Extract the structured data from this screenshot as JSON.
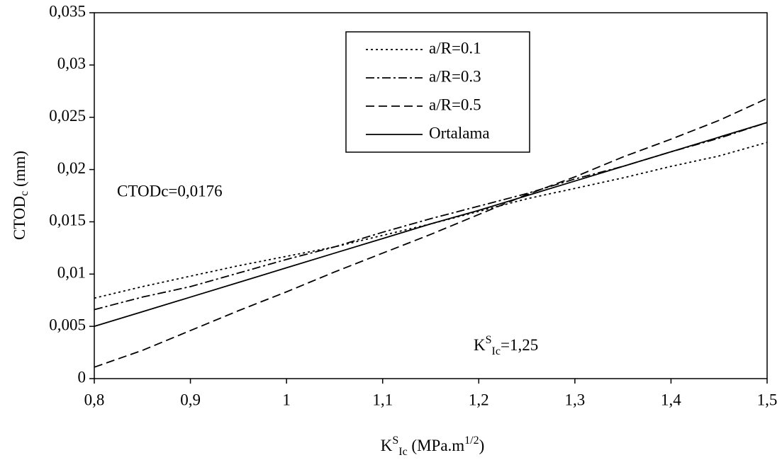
{
  "chart_data": {
    "type": "line",
    "x_label": {
      "base": "K",
      "sup": "S",
      "sub": "Ic",
      "unit": " (MPa.m",
      "unit_sup": "1/2",
      "end": ")"
    },
    "y_label": {
      "base": "CTOD",
      "sub": "c",
      "unit": " (mm)"
    },
    "annotations": {
      "ctod": "CTODc=0,0176",
      "k": {
        "base": "K",
        "sup": "S",
        "sub": "Ic",
        "rest": "=1,25"
      }
    },
    "x": [
      0.8,
      0.85,
      0.9,
      0.95,
      1.0,
      1.05,
      1.1,
      1.15,
      1.2,
      1.25,
      1.3,
      1.35,
      1.4,
      1.45,
      1.5
    ],
    "series": [
      {
        "name": "a/R=0.1",
        "color": "#000000",
        "dash": "dotted",
        "values": [
          0.0077,
          0.0088,
          0.0098,
          0.0108,
          0.0117,
          0.0126,
          0.0137,
          0.0148,
          0.016,
          0.0172,
          0.0182,
          0.0192,
          0.0203,
          0.0213,
          0.0226
        ]
      },
      {
        "name": "a/R=0.3",
        "color": "#000000",
        "dash": "dashdot",
        "values": [
          0.0066,
          0.0078,
          0.0088,
          0.0101,
          0.0114,
          0.0126,
          0.014,
          0.0153,
          0.0165,
          0.0177,
          0.0191,
          0.0203,
          0.0217,
          0.023,
          0.0245
        ]
      },
      {
        "name": "a/R=0.5",
        "color": "#000000",
        "dash": "dashed",
        "values": [
          0.0011,
          0.0027,
          0.0046,
          0.0065,
          0.0083,
          0.0102,
          0.012,
          0.0138,
          0.0157,
          0.0176,
          0.0193,
          0.0212,
          0.0229,
          0.0247,
          0.0268
        ]
      },
      {
        "name": "Ortalama",
        "color": "#000000",
        "dash": "solid",
        "values": [
          0.005,
          0.0064,
          0.0078,
          0.0092,
          0.0106,
          0.012,
          0.0134,
          0.0148,
          0.0161,
          0.0175,
          0.0189,
          0.0203,
          0.0217,
          0.0231,
          0.0245
        ]
      }
    ],
    "xlim": [
      0.8,
      1.5
    ],
    "xticks": [
      {
        "value": 0.8,
        "label": "0,8"
      },
      {
        "value": 0.9,
        "label": "0,9"
      },
      1,
      {
        "value": 1.1,
        "label": "1,1"
      },
      {
        "value": 1.2,
        "label": "1,2"
      },
      {
        "value": 1.3,
        "label": "1,3"
      },
      {
        "value": 1.4,
        "label": "1,4"
      },
      {
        "value": 1.5,
        "label": "1,5"
      }
    ],
    "ylim": [
      0,
      0.035
    ],
    "yticks": [
      0,
      {
        "value": 0.005,
        "label": "0,005"
      },
      {
        "value": 0.01,
        "label": "0,01"
      },
      {
        "value": 0.015,
        "label": "0,015"
      },
      {
        "value": 0.02,
        "label": "0,02"
      },
      {
        "value": 0.025,
        "label": "0,025"
      },
      {
        "value": 0.03,
        "label": "0,03"
      },
      {
        "value": 0.035,
        "label": "0,035"
      }
    ],
    "grid": false,
    "legend": "top"
  }
}
